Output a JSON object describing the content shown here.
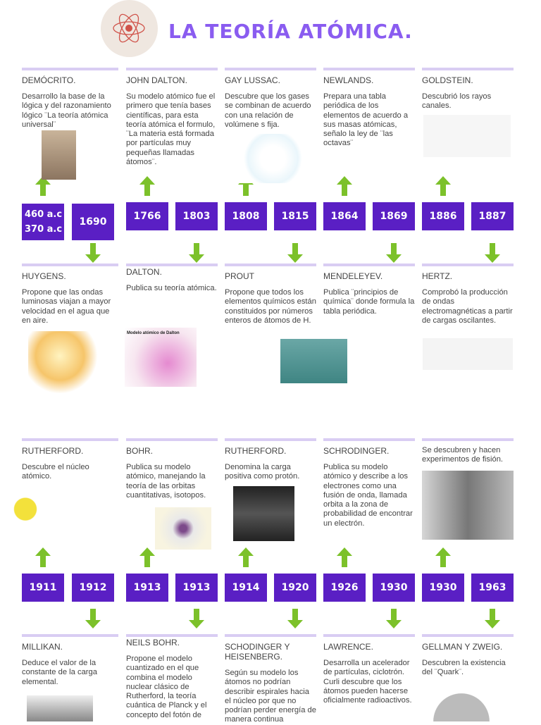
{
  "header": {
    "title": "LA TEORÍA ATÓMICA.",
    "logo_icon": "atom-icon"
  },
  "colors": {
    "accent": "#8a5cf0",
    "year_box": "#5a1fc4",
    "arrow": "#7cc12a",
    "divider": "#d9cdf3"
  },
  "rows": [
    {
      "top_cards": [
        {
          "name": "DEMÓCRITO.",
          "text": "Desarrollo la base de la lógica y del razonamiento lógico ¨La teoría atómica universal¨"
        },
        {
          "name": "JOHN DALTON.",
          "text": "Su modelo atómico fue el primero que tenía bases científicas, para esta teoría atómica el formulo, ¨La materia está formada por partículas muy pequeñas llamadas átomos¨."
        },
        {
          "name": "GAY LUSSAC.",
          "text": "Descubre que los gases se combinan de acuerdo con una relación de volúmene s fija."
        },
        {
          "name": "NEWLANDS.",
          "text": "Prepara una tabla periódica de los elementos de acuerdo a sus masas atómicas, señalo la ley de ¨las octavas¨"
        },
        {
          "name": "GOLDSTEIN.",
          "text": "Descubrió los rayos canales."
        }
      ],
      "years": [
        "460 a.c\n370 a.c",
        "1690",
        "1766",
        "1803",
        "1808",
        "1815",
        "1864",
        "1869",
        "1886",
        "1887"
      ],
      "bottom_cards": [
        {
          "name": "HUYGENS.",
          "text": "Propone que las ondas luminosas viajan a mayor velocidad en el agua que en aire."
        },
        {
          "name": "DALTON.",
          "text": "Publica su teoría atómica.",
          "image_caption": "Modelo atómico de Dalton"
        },
        {
          "name": "PROUT",
          "text": "Propone que todos los elementos químicos están constituidos por números enteros de átomos de H."
        },
        {
          "name": "MENDELEYEV.",
          "text": "Publica ¨principios de química¨ donde formula la tabla periódica."
        },
        {
          "name": "HERTZ.",
          "text": "Comprobó la producción de ondas electromagnéticas a partir de cargas oscilantes."
        }
      ]
    },
    {
      "top_cards": [
        {
          "name": "RUTHERFORD.",
          "text": "Descubre el núcleo atómico."
        },
        {
          "name": "BOHR.",
          "text": "Publica su modelo atómico, manejando la teoría de las orbitas cuantitativas, isotopos."
        },
        {
          "name": "RUTHERFORD.",
          "text": "Denomina la carga positiva como protón."
        },
        {
          "name": "SCHRODINGER.",
          "text": "Publica su modelo atómico y describe a los electrones como una fusión de onda, llamada orbita a la zona de probabilidad de encontrar un electrón."
        },
        {
          "name": "",
          "text": "Se descubren y hacen experimentos de fisión."
        }
      ],
      "years": [
        "1911",
        "1912",
        "1913",
        "1913",
        "1914",
        "1920",
        "1926",
        "1930",
        "1930",
        "1963"
      ],
      "bottom_cards": [
        {
          "name": "MILLIKAN.",
          "text": "Deduce el valor de la constante de la carga elemental."
        },
        {
          "name": "NEILS BOHR.",
          "text": "Propone el modelo cuantizado en el que combina el modelo nuclear clásico de Rutherford, la teoría cuántica de Planck y el concepto del fotón de"
        },
        {
          "name": "SCHODINGER Y HEISENBERG.",
          "text": "Según su modelo los átomos no podrían describir espirales hacia el núcleo por que no podrían perder energía de manera continua"
        },
        {
          "name": "LAWRENCE.",
          "text": "Desarrolla un acelerador de partículas, ciclotrón. Curli descubre que los átomos pueden hacerse oficialmente radioactivos."
        },
        {
          "name": "GELLMAN Y ZWEIG.",
          "text": "Descubren la existencia del ¨Quark¨."
        }
      ]
    }
  ]
}
